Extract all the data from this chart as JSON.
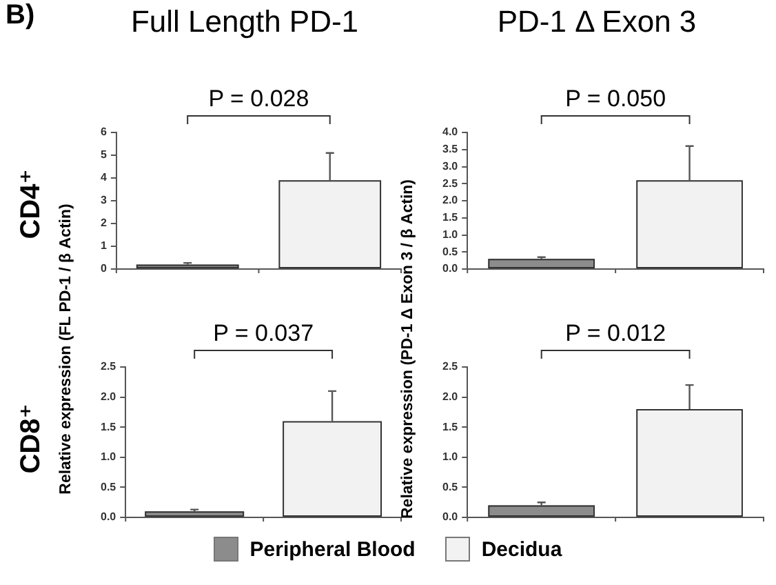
{
  "chart_data": [
    {
      "type": "bar",
      "title": "Full Length PD-1",
      "ylabel": "Relative expression (FL PD-1 / β Actin)",
      "categories": [
        null,
        null
      ],
      "annotations": [
        "B)",
        "CD4⁺",
        "P = 0.028"
      ],
      "series": [
        {
          "color": "#8c8c8c",
          "values": [
            0.2,
            null
          ],
          "errors": [
            [
              0.2,
              0.27
            ],
            null
          ]
        },
        {
          "color": "#f2f2f2",
          "values": [
            null,
            3.9
          ],
          "errors": [
            null,
            [
              3.9,
              5.1
            ]
          ]
        }
      ],
      "ylim": [
        0,
        6
      ],
      "yticks": [
        0,
        1,
        2,
        3,
        4,
        5,
        6
      ]
    },
    {
      "type": "bar",
      "title": "PD-1 Δ Exon 3",
      "ylabel": "Relative expression (PD-1 Δ Exon 3 / β Actin)",
      "categories": [
        null,
        null
      ],
      "annotations": [
        "P = 0.050"
      ],
      "series": [
        {
          "color": "#8c8c8c",
          "values": [
            0.3,
            null
          ],
          "errors": [
            [
              0.3,
              0.35
            ],
            null
          ]
        },
        {
          "color": "#f2f2f2",
          "values": [
            null,
            2.6
          ],
          "errors": [
            null,
            [
              2.6,
              3.6
            ]
          ]
        }
      ],
      "ylim": [
        0,
        4
      ],
      "yticks": [
        {
          "value": 0,
          "label": "0.0"
        },
        {
          "value": 0.5,
          "label": "0.5"
        },
        {
          "value": 1,
          "label": "1.0"
        },
        {
          "value": 1.5,
          "label": "1.5"
        },
        {
          "value": 2,
          "label": "2.0"
        },
        {
          "value": 2.5,
          "label": "2.5"
        },
        {
          "value": 3,
          "label": "3.0"
        },
        {
          "value": 3.5,
          "label": "3.5"
        },
        {
          "value": 4,
          "label": "4.0"
        }
      ]
    },
    {
      "type": "bar",
      "categories": [
        null,
        null
      ],
      "annotations": [
        "CD8⁺",
        "P = 0.037"
      ],
      "series": [
        {
          "color": "#8c8c8c",
          "values": [
            0.1,
            null
          ],
          "errors": [
            [
              0.1,
              0.13
            ],
            null
          ]
        },
        {
          "color": "#f2f2f2",
          "values": [
            null,
            1.6
          ],
          "errors": [
            null,
            [
              1.6,
              2.1
            ]
          ]
        }
      ],
      "ylim": [
        0,
        2.5
      ],
      "yticks": [
        {
          "value": 0,
          "label": "0.0"
        },
        {
          "value": 0.5,
          "label": "0.5"
        },
        {
          "value": 1,
          "label": "1.0"
        },
        {
          "value": 1.5,
          "label": "1.5"
        },
        {
          "value": 2,
          "label": "2.0"
        },
        {
          "value": 2.5,
          "label": "2.5"
        }
      ]
    },
    {
      "type": "bar",
      "categories": [
        null,
        null
      ],
      "annotations": [
        "P = 0.012"
      ],
      "legend": "bottom",
      "series": [
        {
          "name": "Peripheral Blood",
          "color": "#8c8c8c",
          "values": [
            0.2,
            null
          ],
          "errors": [
            [
              0.2,
              0.25
            ],
            null
          ]
        },
        {
          "name": "Decidua",
          "color": "#f2f2f2",
          "values": [
            null,
            1.8
          ],
          "errors": [
            null,
            [
              1.8,
              2.2
            ]
          ]
        }
      ],
      "ylim": [
        0,
        2.5
      ],
      "yticks": [
        {
          "value": 0,
          "label": "0.0"
        },
        {
          "value": 0.5,
          "label": "0.5"
        },
        {
          "value": 1,
          "label": "1.0"
        },
        {
          "value": 1.5,
          "label": "1.5"
        },
        {
          "value": 2,
          "label": "2.0"
        },
        {
          "value": 2.5,
          "label": "2.5"
        }
      ]
    }
  ]
}
